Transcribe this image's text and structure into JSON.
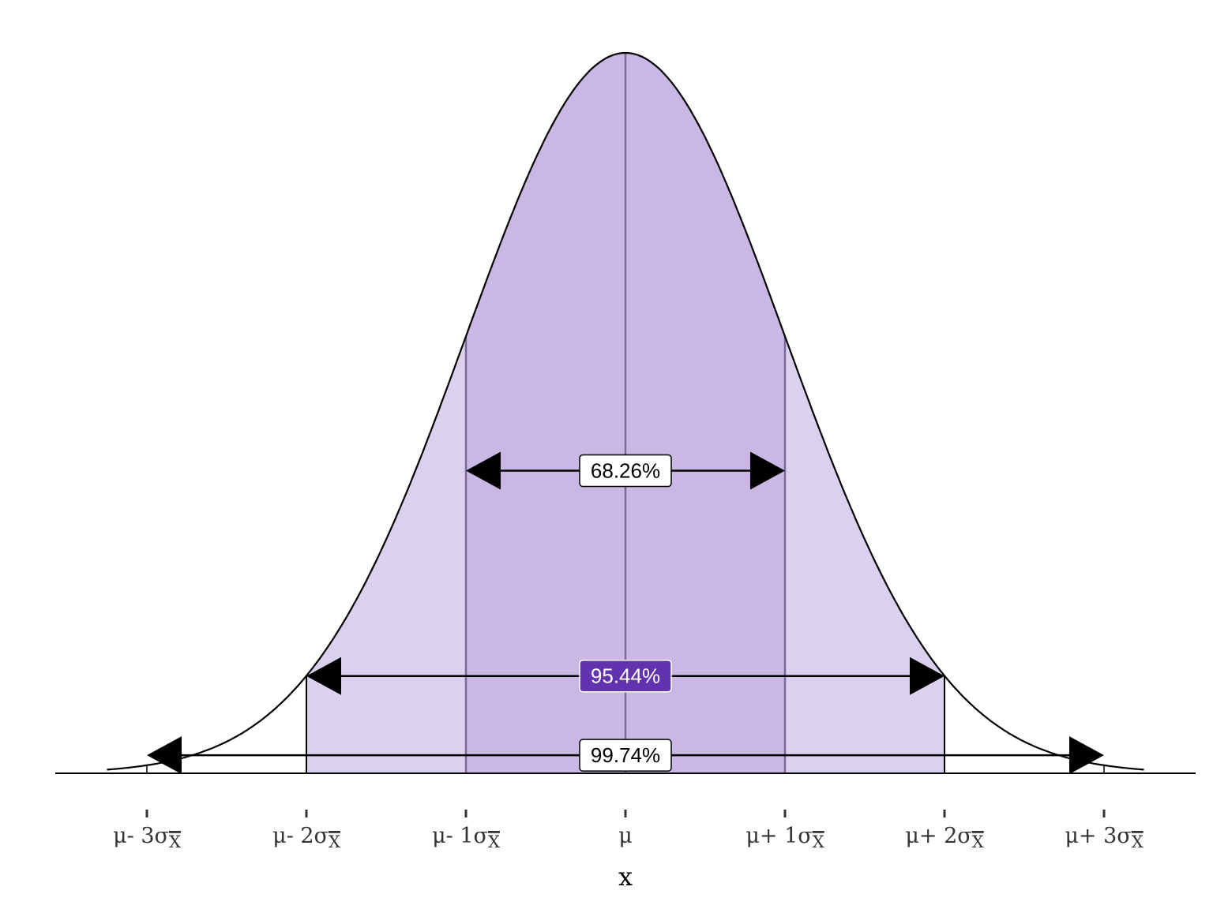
{
  "chart_data": {
    "type": "area",
    "title": "",
    "xlabel": "x",
    "ylabel": "",
    "distribution": "normal",
    "mean": 0,
    "sd": 1,
    "xlim": [
      -3.25,
      3.25
    ],
    "ticks": [
      -3,
      -2,
      -1,
      0,
      1,
      2,
      3
    ],
    "tick_labels": [
      {
        "text": "μ- 3σ",
        "sub": "X"
      },
      {
        "text": "μ- 2σ",
        "sub": "X"
      },
      {
        "text": "μ- 1σ",
        "sub": "X"
      },
      {
        "text": "μ",
        "sub": ""
      },
      {
        "text": "μ+ 1σ",
        "sub": "X"
      },
      {
        "text": "μ+ 2σ",
        "sub": "X"
      },
      {
        "text": "μ+ 3σ",
        "sub": "X"
      }
    ],
    "shaded_regions": [
      {
        "from": -2,
        "to": 2,
        "color": "#dcd0ef"
      },
      {
        "from": -1,
        "to": 1,
        "color": "#c9b8e3"
      }
    ],
    "intervals": [
      {
        "from": -1,
        "to": 1,
        "label": "68.26%",
        "label_bg": "#ffffff",
        "label_color": "#000000",
        "level": 0.42
      },
      {
        "from": -2,
        "to": 2,
        "label": "95.44%",
        "label_bg": "#6233ae",
        "label_color": "#ffffff",
        "level": 0.135
      },
      {
        "from": -3,
        "to": 3,
        "label": "99.74%",
        "label_bg": "#ffffff",
        "label_color": "#000000",
        "level": 0.025
      }
    ],
    "grid": false,
    "legend": "none"
  }
}
